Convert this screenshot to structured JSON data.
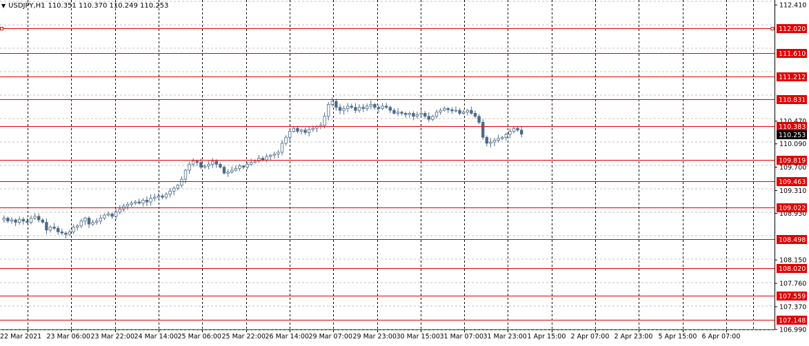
{
  "header": {
    "symbol": "USDJPY,H1",
    "ohlc": "110.351 110.370 110.249 110.253"
  },
  "colors": {
    "background": "#ffffff",
    "grid": "#c0c0c0",
    "vline": "#000000",
    "level_line": "#e00000",
    "candle": "#4d6a8a",
    "price_tag_bg": "#e00000",
    "current_tag_bg": "#000000"
  },
  "chart_data": {
    "type": "candlestick",
    "symbol": "USDJPY",
    "timeframe": "H1",
    "ylim": [
      106.99,
      112.47
    ],
    "y_ticks": [
      "112.410",
      "110.470",
      "110.090",
      "109.700",
      "109.310",
      "108.930",
      "108.150",
      "107.760",
      "107.370",
      "106.990"
    ],
    "x_ticks": [
      "22 Mar 2021",
      "23 Mar 06:00",
      "23 Mar 22:00",
      "24 Mar 14:00",
      "25 Mar 06:00",
      "25 Mar 22:00",
      "26 Mar 14:00",
      "29 Mar 07:00",
      "29 Mar 23:00",
      "30 Mar 15:00",
      "31 Mar 07:00",
      "31 Mar 23:00",
      "1 Apr 15:00",
      "2 Apr 07:00",
      "2 Apr 23:00",
      "5 Apr 15:00",
      "6 Apr 07:00"
    ],
    "levels": [
      112.02,
      111.61,
      111.212,
      110.831,
      110.383,
      109.819,
      109.463,
      109.022,
      108.498,
      108.02,
      107.559,
      107.148
    ],
    "level_labels": [
      "112.020",
      "111.610",
      "111.212",
      "110.831",
      "110.383",
      "109.819",
      "109.463",
      "109.022",
      "108.498",
      "108.020",
      "107.559",
      "107.148"
    ],
    "current_price": 110.253,
    "current_label": "110.253",
    "close_path": [
      108.85,
      108.8,
      108.82,
      108.78,
      108.83,
      108.8,
      108.78,
      108.85,
      108.88,
      108.82,
      108.78,
      108.65,
      108.7,
      108.68,
      108.62,
      108.6,
      108.58,
      108.62,
      108.7,
      108.72,
      108.8,
      108.85,
      108.75,
      108.78,
      108.8,
      108.85,
      108.9,
      108.92,
      108.88,
      108.95,
      109.0,
      109.05,
      109.08,
      109.1,
      109.12,
      109.1,
      109.15,
      109.12,
      109.18,
      109.2,
      109.22,
      109.2,
      109.25,
      109.3,
      109.35,
      109.4,
      109.5,
      109.65,
      109.75,
      109.8,
      109.78,
      109.7,
      109.72,
      109.75,
      109.8,
      109.75,
      109.7,
      109.6,
      109.62,
      109.65,
      109.68,
      109.72,
      109.7,
      109.75,
      109.78,
      109.8,
      109.85,
      109.82,
      109.88,
      109.9,
      109.92,
      109.95,
      110.1,
      110.2,
      110.3,
      110.35,
      110.3,
      110.32,
      110.28,
      110.33,
      110.35,
      110.38,
      110.4,
      110.55,
      110.75,
      110.8,
      110.7,
      110.65,
      110.68,
      110.72,
      110.7,
      110.65,
      110.7,
      110.68,
      110.72,
      110.75,
      110.7,
      110.68,
      110.72,
      110.7,
      110.65,
      110.6,
      110.62,
      110.6,
      110.58,
      110.6,
      110.55,
      110.58,
      110.6,
      110.55,
      110.5,
      110.55,
      110.62,
      110.65,
      110.68,
      110.66,
      110.64,
      110.65,
      110.6,
      110.62,
      110.65,
      110.6,
      110.55,
      110.45,
      110.2,
      110.1,
      110.12,
      110.15,
      110.18,
      110.2,
      110.25,
      110.3,
      110.35,
      110.32,
      110.253
    ]
  }
}
